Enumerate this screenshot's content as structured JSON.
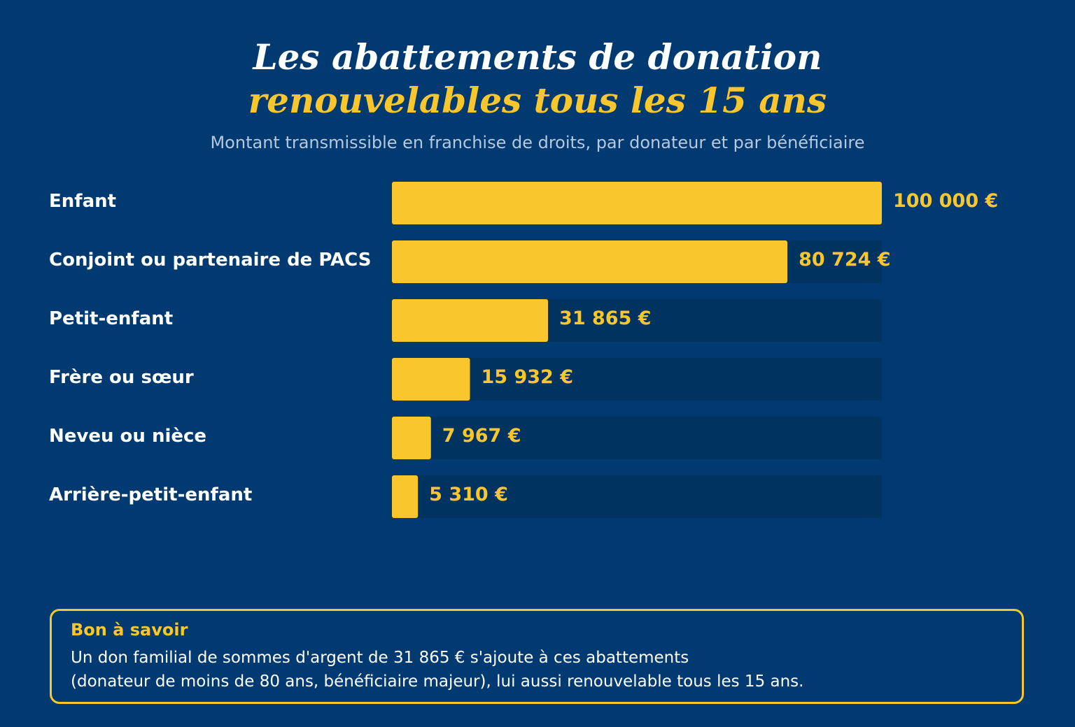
{
  "title_line1": "Les abattements de donation",
  "title_line2": "renouvelables tous les 15 ans",
  "subtitle": "Montant transmissible en franchise de droits, par donateur et par bénéficiaire",
  "colors": {
    "background": "#003a70",
    "accent": "#f9c62d",
    "track": "#00335f",
    "text": "#ffffff",
    "subtitle": "#b5c8df"
  },
  "chart_data": {
    "type": "bar",
    "orientation": "horizontal",
    "categories": [
      "Enfant",
      "Conjoint ou partenaire de PACS",
      "Petit-enfant",
      "Frère ou sœur",
      "Neveu ou nièce",
      "Arrière-petit-enfant"
    ],
    "values": [
      100000,
      80724,
      31865,
      15932,
      7967,
      5310
    ],
    "value_labels": [
      "100 000 €",
      "80 724 €",
      "31 865 €",
      "15 932 €",
      "7 967 €",
      "5 310 €"
    ],
    "xlim": [
      0,
      100000
    ],
    "grid": false,
    "legend": "none"
  },
  "note": {
    "title": "Bon à savoir",
    "line1": "Un don familial de sommes d'argent de 31 865 € s'ajoute à ces abattements",
    "line2": "(donateur de moins de 80 ans, bénéficiaire majeur), lui aussi renouvelable tous les 15 ans."
  }
}
